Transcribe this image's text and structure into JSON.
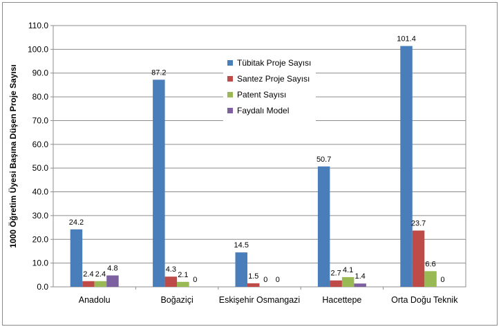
{
  "chart_data": {
    "type": "bar",
    "title": "",
    "xlabel": "",
    "ylabel": "1000 Öğretim Üyesi Başına Düşen Proje Sayısı",
    "ylim": [
      0,
      110
    ],
    "yticks": [
      "0.0",
      "10.0",
      "20.0",
      "30.0",
      "40.0",
      "50.0",
      "60.0",
      "70.0",
      "80.0",
      "90.0",
      "100.0",
      "110.0"
    ],
    "grid": true,
    "legend_position": "top-center",
    "categories": [
      "Anadolu",
      "Boğaziçi",
      "Eskişehir Osmangazi",
      "Hacettepe",
      "Orta Doğu Teknik"
    ],
    "series": [
      {
        "name": "Tübitak Proje Sayısı",
        "color": "#4a7ebb",
        "values": [
          24.2,
          87.2,
          14.5,
          50.7,
          101.4
        ],
        "labels": [
          "24.2",
          "87.2",
          "14.5",
          "50.7",
          "101.4"
        ]
      },
      {
        "name": "Santez Proje Sayısı",
        "color": "#be4b48",
        "values": [
          2.4,
          4.3,
          1.5,
          2.7,
          23.7
        ],
        "labels": [
          "2.4",
          "4.3",
          "1.5",
          "2.7",
          "23.7"
        ]
      },
      {
        "name": "Patent Sayısı",
        "color": "#98b954",
        "values": [
          2.4,
          2.1,
          0,
          4.1,
          6.6
        ],
        "labels": [
          "2.4",
          "2.1",
          "0",
          "4.1",
          "6.6"
        ]
      },
      {
        "name": "Faydalı Model",
        "color": "#7d60a0",
        "values": [
          4.8,
          0,
          0,
          1.4,
          0
        ],
        "labels": [
          "4.8",
          "0",
          "0",
          "1.4",
          "0"
        ]
      }
    ]
  }
}
